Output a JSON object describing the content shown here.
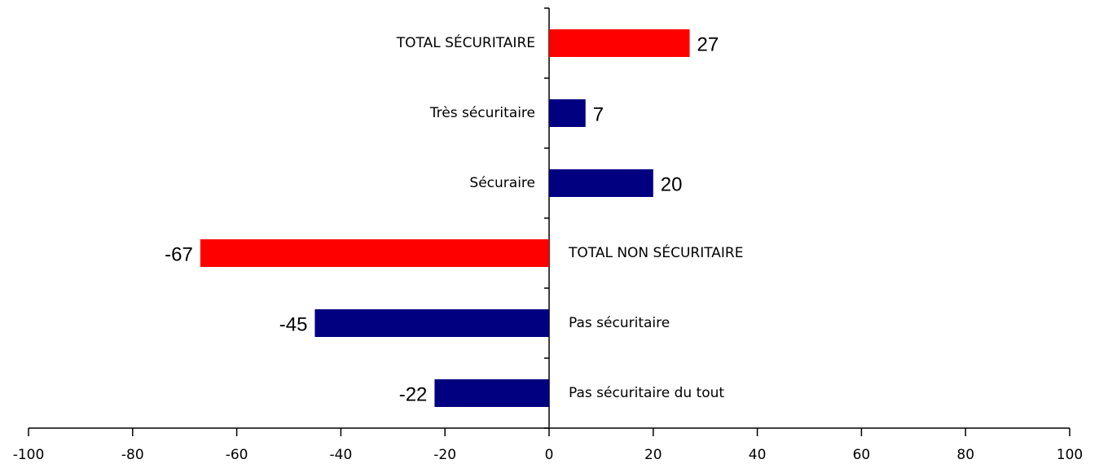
{
  "chart_data": {
    "type": "barh",
    "categories": [
      "TOTAL SÉCURITAIRE",
      "Très sécuritaire",
      "Sécuraire",
      "TOTAL NON SÉCURITAIRE",
      "Pas sécuritaire",
      "Pas sécuritaire du tout"
    ],
    "values": [
      27,
      7,
      20,
      -67,
      -45,
      -22
    ],
    "colors": [
      "#ff0000",
      "#000080",
      "#000080",
      "#ff0000",
      "#000080",
      "#000080"
    ],
    "xlim": [
      -100,
      100
    ],
    "xticks": [
      -100,
      -80,
      -60,
      -40,
      -20,
      0,
      20,
      40,
      60,
      80,
      100
    ]
  }
}
